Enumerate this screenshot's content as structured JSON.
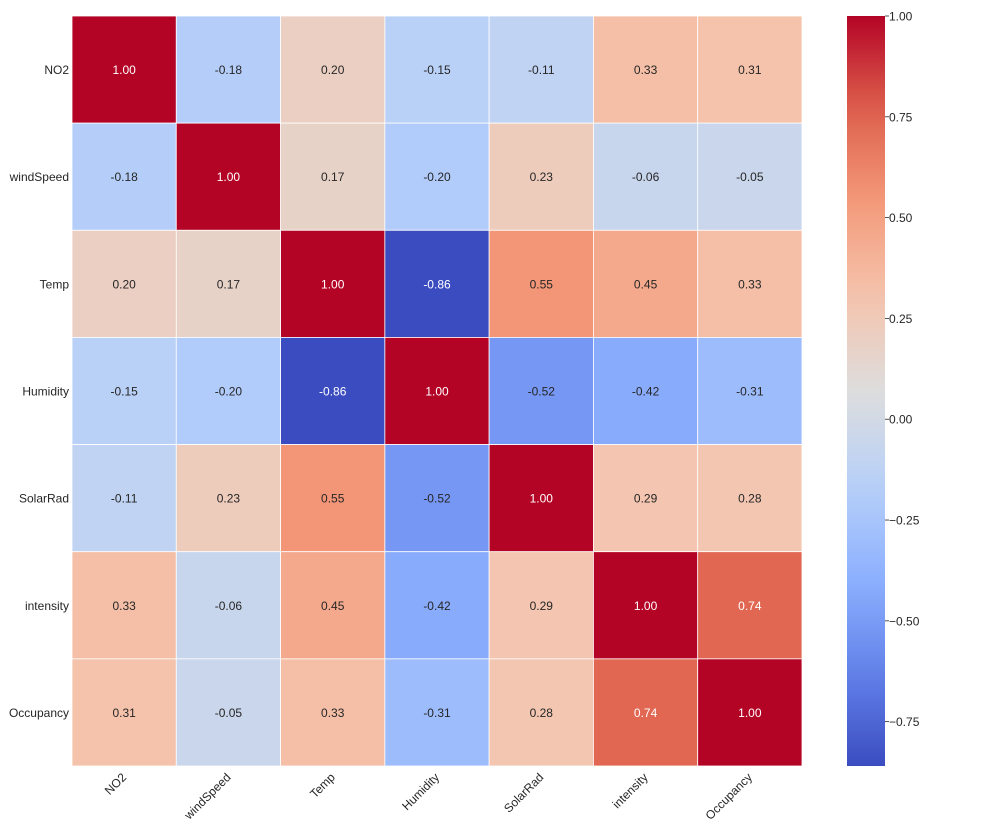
{
  "chart_data": {
    "type": "heatmap",
    "title": "",
    "xlabel": "",
    "ylabel": "",
    "x_labels": [
      "NO2",
      "windSpeed",
      "Temp",
      "Humidity",
      "SolarRad",
      "intensity",
      "Occupancy"
    ],
    "y_labels": [
      "NO2",
      "windSpeed",
      "Temp",
      "Humidity",
      "SolarRad",
      "intensity",
      "Occupancy"
    ],
    "values": [
      [
        1.0,
        -0.18,
        0.2,
        -0.15,
        -0.11,
        0.33,
        0.31
      ],
      [
        -0.18,
        1.0,
        0.17,
        -0.2,
        0.23,
        -0.06,
        -0.05
      ],
      [
        0.2,
        0.17,
        1.0,
        -0.86,
        0.55,
        0.45,
        0.33
      ],
      [
        -0.15,
        -0.2,
        -0.86,
        1.0,
        -0.52,
        -0.42,
        -0.31
      ],
      [
        -0.11,
        0.23,
        0.55,
        -0.52,
        1.0,
        0.29,
        0.28
      ],
      [
        0.33,
        -0.06,
        0.45,
        -0.42,
        0.29,
        1.0,
        0.74
      ],
      [
        0.31,
        -0.05,
        0.33,
        -0.31,
        0.28,
        0.74,
        1.0
      ]
    ],
    "value_format": "0.00",
    "colormap": "coolwarm",
    "vmin": -0.86,
    "vmax": 1.0,
    "colorbar": {
      "ticks": [
        1.0,
        0.75,
        0.5,
        0.25,
        0.0,
        -0.25,
        -0.5,
        -0.75
      ],
      "tick_labels": [
        "1.00",
        "0.75",
        "0.50",
        "0.25",
        "0.00",
        "−0.25",
        "−0.50",
        "−0.75"
      ],
      "placement": "right"
    },
    "x_tick_rotation_deg": 45,
    "grid": false
  }
}
